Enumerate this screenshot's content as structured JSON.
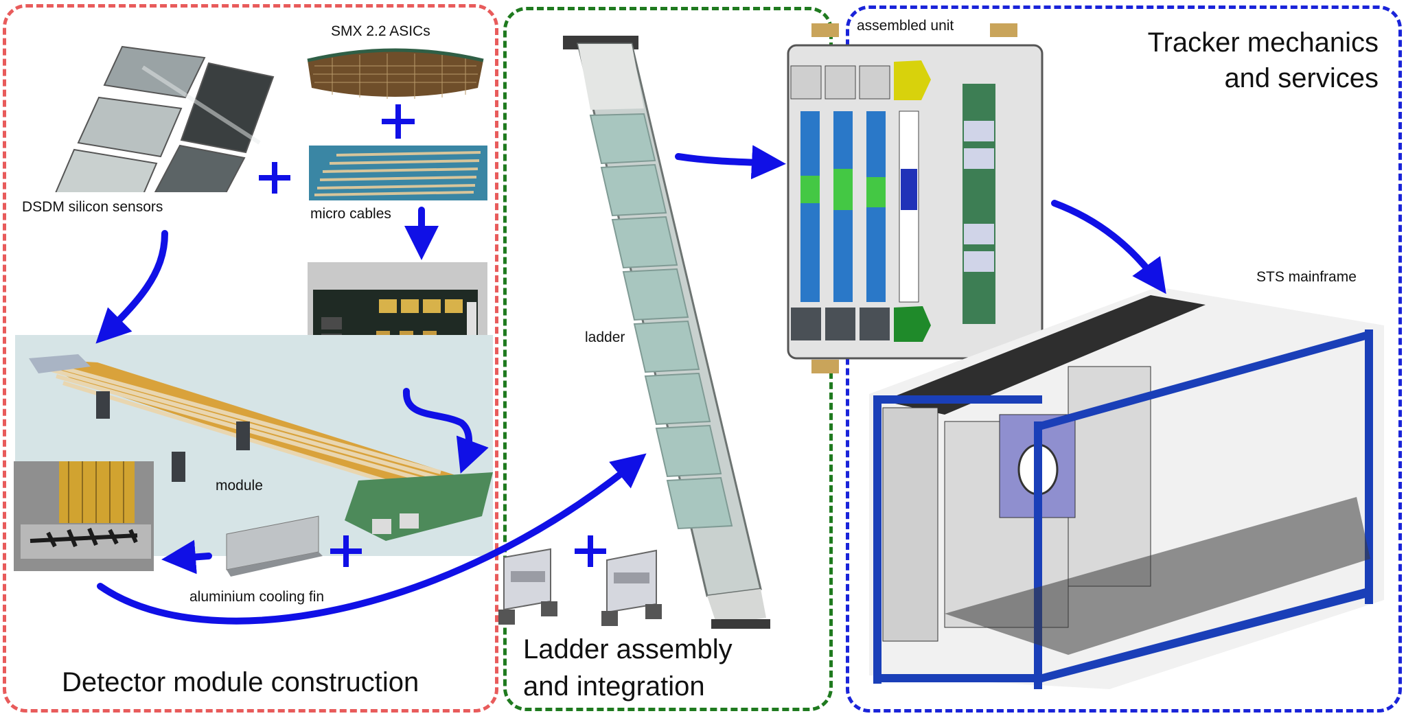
{
  "colors": {
    "module_region": "#e85b5b",
    "ladder_region": "#1f7a1f",
    "tracker_region": "#1a24d9",
    "arrow": "#1010e6"
  },
  "icons": [
    "plus-icon",
    "flow-arrow"
  ],
  "labels": {
    "smx_asics": "SMX 2.2 ASICs",
    "dsdm_sensors": "DSDM silicon sensors",
    "micro_cables": "micro cables",
    "module": "module",
    "cooling_fin": "aluminium cooling fin",
    "ladder": "ladder",
    "assembled_unit": "assembled unit",
    "sts_mainframe": "STS mainframe"
  },
  "sections": {
    "module_construction": "Detector module construction",
    "ladder_assembly_line1": "Ladder assembly",
    "ladder_assembly_line2": "and integration",
    "tracker_line1": "Tracker mechanics",
    "tracker_line2": "and services"
  }
}
